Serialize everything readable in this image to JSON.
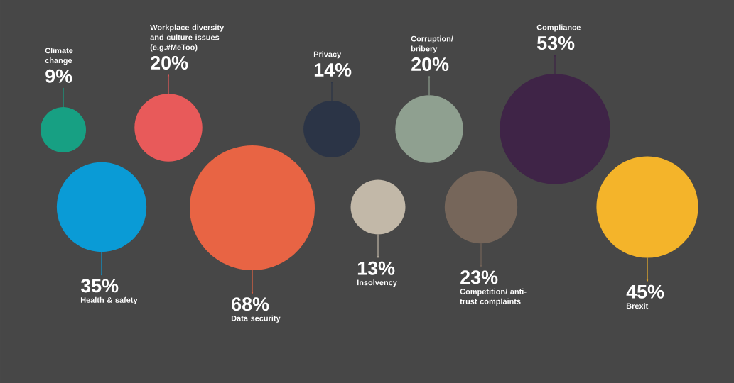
{
  "chart_data": {
    "type": "other",
    "categories": [
      "Climate change",
      "Workplace diversity and culture issues (e.g.#MeToo)",
      "Health & safety",
      "Data security",
      "Privacy",
      "Insolvency",
      "Corruption/ bribery",
      "Competition/ anti-trust complaints",
      "Compliance",
      "Brexit"
    ],
    "values": [
      9,
      20,
      35,
      68,
      14,
      13,
      20,
      23,
      53,
      45
    ],
    "value_labels": [
      "9%",
      "20%",
      "35%",
      "68%",
      "14%",
      "13%",
      "20%",
      "23%",
      "53%",
      "45%"
    ],
    "colors": [
      "#17a083",
      "#e85a5a",
      "#0a9bd6",
      "#e86444",
      "#2b3446",
      "#c2b8a8",
      "#8fa090",
      "#76665a",
      "#3f2447",
      "#f4b42a"
    ]
  }
}
